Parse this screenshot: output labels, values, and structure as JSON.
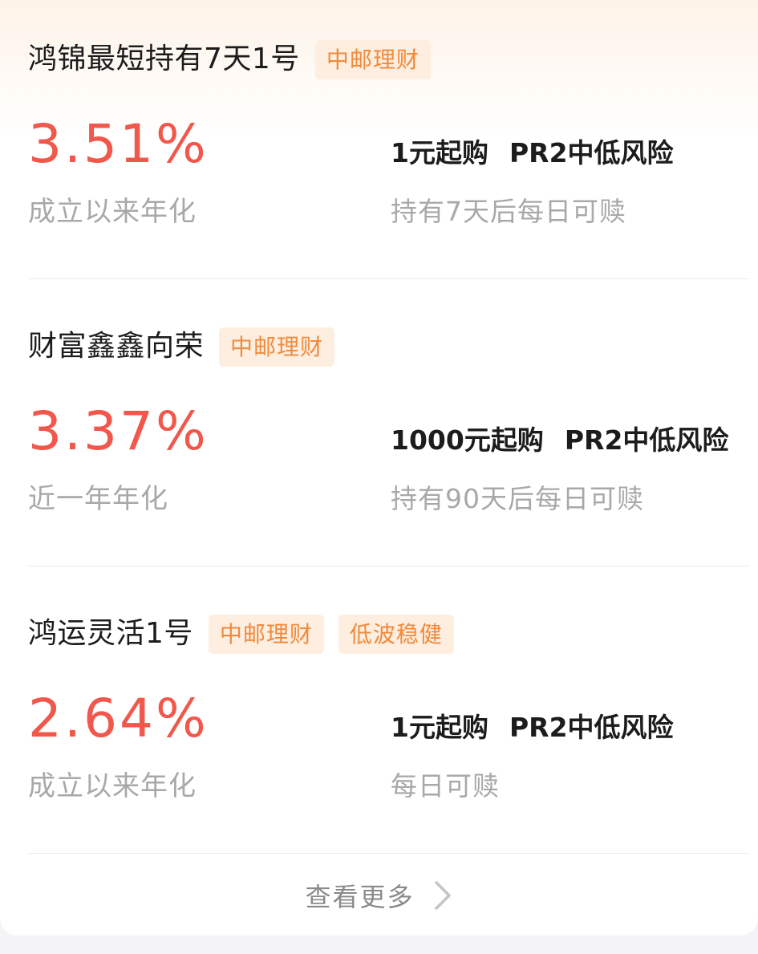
{
  "products": [
    {
      "name": "鸿锦最短持有7天1号",
      "tags": [
        "中邮理财"
      ],
      "rate": "3.51%",
      "rate_label": "成立以来年化",
      "min_purchase": "1元起购",
      "risk_level": "PR2中低风险",
      "redemption": "持有7天后每日可赎"
    },
    {
      "name": "财富鑫鑫向荣",
      "tags": [
        "中邮理财"
      ],
      "rate": "3.37%",
      "rate_label": "近一年年化",
      "min_purchase": "1000元起购",
      "risk_level": "PR2中低风险",
      "redemption": "持有90天后每日可赎"
    },
    {
      "name": "鸿运灵活1号",
      "tags": [
        "中邮理财",
        "低波稳健"
      ],
      "rate": "2.64%",
      "rate_label": "成立以来年化",
      "min_purchase": "1元起购",
      "risk_level": "PR2中低风险",
      "redemption": "每日可赎"
    }
  ],
  "view_more": {
    "label": "查看更多",
    "icon": "chevron-right-icon"
  },
  "colors": {
    "rate": "#f1574a",
    "tag_text": "#f08a3c",
    "tag_bg": "#fdeee0",
    "header_gradient": "#fef3e8"
  }
}
